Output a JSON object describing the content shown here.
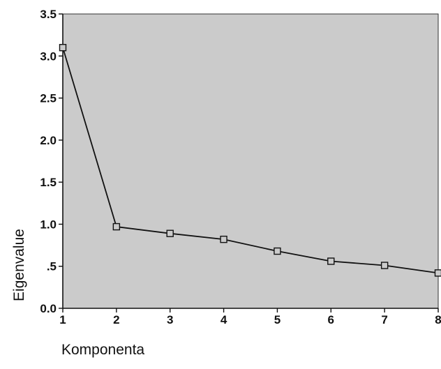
{
  "chart_data": {
    "type": "line",
    "title": "",
    "xlabel": "Komponenta",
    "ylabel": "Eigenvalue",
    "x": [
      1,
      2,
      3,
      4,
      5,
      6,
      7,
      8
    ],
    "series": [
      {
        "values": [
          3.1,
          0.97,
          0.89,
          0.82,
          0.68,
          0.56,
          0.51,
          0.42
        ]
      }
    ],
    "xlim": [
      1,
      8
    ],
    "ylim": [
      0,
      3.5
    ],
    "x_ticks": [
      "1",
      "2",
      "3",
      "4",
      "5",
      "6",
      "7",
      "8"
    ],
    "y_ticks": [
      {
        "value": 0.0,
        "label": "0.0"
      },
      {
        "value": 0.5,
        "label": ".5"
      },
      {
        "value": 1.0,
        "label": "1.0"
      },
      {
        "value": 1.5,
        "label": "1.5"
      },
      {
        "value": 2.0,
        "label": "2.0"
      },
      {
        "value": 2.5,
        "label": "2.5"
      },
      {
        "value": 3.0,
        "label": "3.0"
      },
      {
        "value": 3.5,
        "label": "3.5"
      }
    ],
    "grid": false,
    "marker": "square",
    "colors": {
      "plot_background": "#cbcbcb",
      "line": "#111111",
      "marker_fill": "#cbcbcb"
    }
  }
}
